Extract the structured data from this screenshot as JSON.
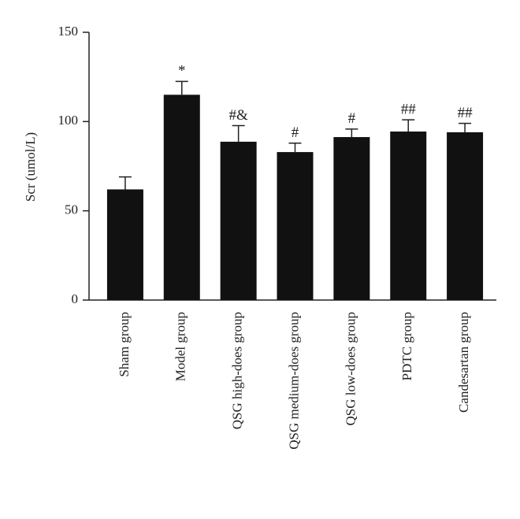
{
  "chart_data": {
    "type": "bar",
    "y_label": "Scr (umol/L)",
    "categories": [
      "Sham group",
      "Model group",
      "QSG high-does group",
      "QSG medium-does group",
      "QSG low-does group",
      "PDTC group",
      "Candesartan group"
    ],
    "values": [
      62,
      115,
      88.7,
      82.9,
      91.3,
      94.4,
      94.0
    ],
    "errors": [
      7,
      7.5,
      9,
      5,
      4.5,
      6.6,
      5
    ],
    "annotations": [
      null,
      "*",
      "#&",
      "#",
      "#",
      "##",
      "##"
    ],
    "color": "#111111",
    "ylim": [
      0,
      150
    ],
    "yticks": [
      0,
      50,
      100,
      150
    ],
    "grid": false
  }
}
